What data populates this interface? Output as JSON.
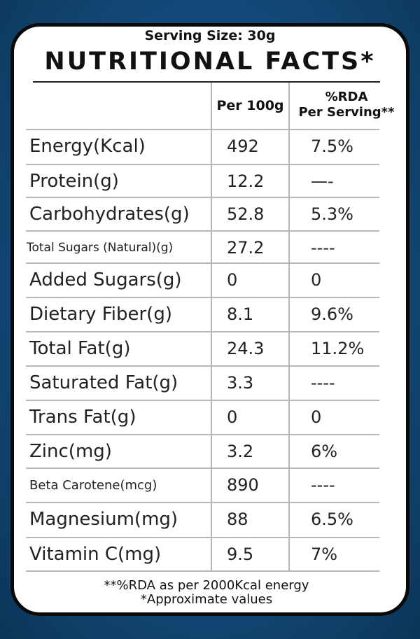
{
  "panel": {
    "serving_size": "Serving Size: 30g",
    "title": "NUTRITIONAL FACTS*"
  },
  "table": {
    "headers": {
      "per_100g": "Per 100g",
      "rda_line1": "%RDA",
      "rda_line2": "Per Serving**"
    },
    "rows": [
      {
        "nutrient": "Energy(Kcal)",
        "per_100g": "492",
        "rda": "7.5%"
      },
      {
        "nutrient": "Protein(g)",
        "per_100g": "12.2",
        "rda": "—-"
      },
      {
        "nutrient": "Carbohydrates(g)",
        "per_100g": "52.8",
        "rda": "5.3%"
      },
      {
        "nutrient": "Total Sugars (Natural)(g)",
        "per_100g": "27.2",
        "rda": "----"
      },
      {
        "nutrient": "Added Sugars(g)",
        "per_100g": "0",
        "rda": "0"
      },
      {
        "nutrient": "Dietary Fiber(g)",
        "per_100g": "8.1",
        "rda": "9.6%"
      },
      {
        "nutrient": "Total Fat(g)",
        "per_100g": "24.3",
        "rda": "11.2%"
      },
      {
        "nutrient": "Saturated Fat(g)",
        "per_100g": "3.3",
        "rda": "----"
      },
      {
        "nutrient": "Trans Fat(g)",
        "per_100g": "0",
        "rda": "0"
      },
      {
        "nutrient": "Zinc(mg)",
        "per_100g": "3.2",
        "rda": "6%"
      },
      {
        "nutrient": "Beta Carotene(mcg)",
        "per_100g": "890",
        "rda": "----"
      },
      {
        "nutrient": "Magnesium(mg)",
        "per_100g": "88",
        "rda": "6.5%"
      },
      {
        "nutrient": "Vitamin C(mg)",
        "per_100g": "9.5",
        "rda": "7%"
      }
    ]
  },
  "footnotes": {
    "rda_note": "**%RDA as per 2000Kcal energy",
    "approx_note": "*Approximate values"
  }
}
